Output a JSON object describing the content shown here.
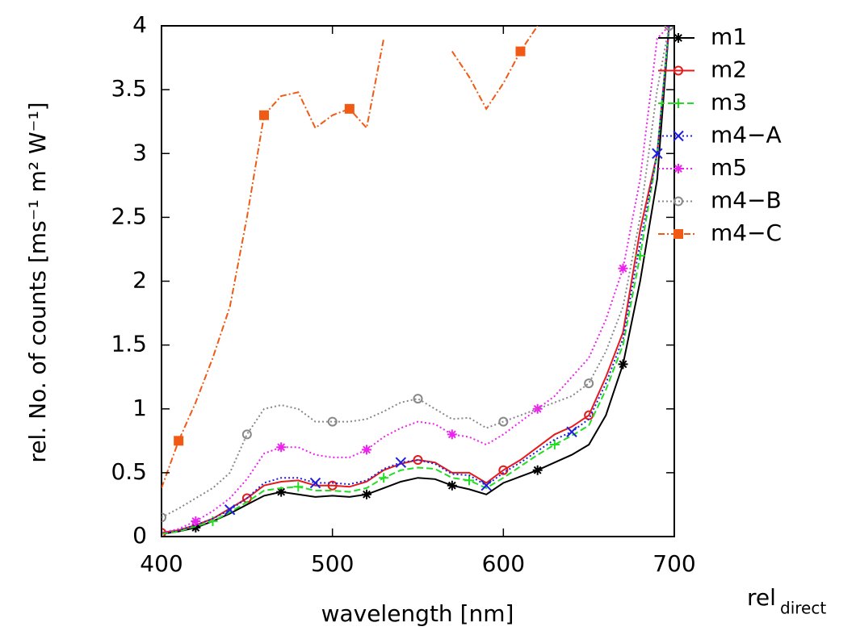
{
  "chart_data": {
    "type": "line",
    "xlabel": "wavelength [nm]",
    "ylabel": "rel. No. of counts [ms⁻¹ m² W⁻¹]",
    "annotation": {
      "text": "rel",
      "subscript": "direct"
    },
    "x": [
      400,
      410,
      420,
      430,
      440,
      450,
      460,
      470,
      480,
      490,
      500,
      510,
      520,
      530,
      540,
      550,
      560,
      570,
      580,
      590,
      600,
      610,
      620,
      630,
      640,
      650,
      660,
      670,
      680,
      690,
      697
    ],
    "xlim": [
      400,
      700
    ],
    "xticks": [
      400,
      500,
      600,
      700
    ],
    "ylim": [
      0,
      4
    ],
    "yticks": [
      0,
      0.5,
      1,
      1.5,
      2,
      2.5,
      3,
      3.5,
      4
    ],
    "legend": "right-outside",
    "series": [
      {
        "name": "m1",
        "color": "#000000",
        "style": "solid",
        "marker": "star",
        "values": [
          0.02,
          0.04,
          0.07,
          0.12,
          0.18,
          0.25,
          0.32,
          0.35,
          0.33,
          0.31,
          0.32,
          0.31,
          0.33,
          0.38,
          0.43,
          0.46,
          0.45,
          0.4,
          0.37,
          0.33,
          0.42,
          0.47,
          0.52,
          0.58,
          0.64,
          0.72,
          0.95,
          1.35,
          2.0,
          2.8,
          4.0
        ]
      },
      {
        "name": "m2",
        "color": "#e41a1c",
        "style": "solid",
        "marker": "circle",
        "values": [
          0.03,
          0.05,
          0.09,
          0.14,
          0.22,
          0.3,
          0.4,
          0.43,
          0.44,
          0.4,
          0.4,
          0.39,
          0.43,
          0.52,
          0.57,
          0.6,
          0.58,
          0.5,
          0.5,
          0.42,
          0.52,
          0.6,
          0.7,
          0.8,
          0.86,
          0.95,
          1.25,
          1.6,
          2.4,
          3.0,
          4.0
        ]
      },
      {
        "name": "m3",
        "color": "#22dd22",
        "style": "dashed",
        "marker": "plus",
        "values": [
          0.02,
          0.04,
          0.08,
          0.12,
          0.19,
          0.27,
          0.36,
          0.38,
          0.39,
          0.36,
          0.36,
          0.35,
          0.38,
          0.46,
          0.52,
          0.54,
          0.53,
          0.46,
          0.44,
          0.38,
          0.46,
          0.55,
          0.64,
          0.72,
          0.79,
          0.87,
          1.15,
          1.5,
          2.2,
          3.0,
          4.0
        ]
      },
      {
        "name": "m4−A",
        "color": "#1f1fdd",
        "style": "dotted",
        "marker": "cross",
        "values": [
          0.03,
          0.05,
          0.09,
          0.14,
          0.21,
          0.3,
          0.42,
          0.46,
          0.46,
          0.42,
          0.42,
          0.41,
          0.44,
          0.53,
          0.58,
          0.6,
          0.57,
          0.49,
          0.48,
          0.4,
          0.5,
          0.58,
          0.67,
          0.76,
          0.82,
          0.92,
          1.2,
          1.55,
          2.3,
          3.0,
          4.0
        ]
      },
      {
        "name": "m5",
        "color": "#ee22ee",
        "style": "dotted",
        "marker": "asterisk",
        "values": [
          0.03,
          0.06,
          0.12,
          0.2,
          0.3,
          0.45,
          0.65,
          0.7,
          0.7,
          0.64,
          0.62,
          0.62,
          0.68,
          0.78,
          0.85,
          0.9,
          0.88,
          0.8,
          0.78,
          0.72,
          0.8,
          0.9,
          1.0,
          1.1,
          1.25,
          1.4,
          1.7,
          2.1,
          2.8,
          3.9,
          4.0
        ]
      },
      {
        "name": "m4−B",
        "color": "#888888",
        "style": "dotted",
        "marker": "circle",
        "values": [
          0.15,
          0.22,
          0.3,
          0.38,
          0.5,
          0.8,
          1.0,
          1.03,
          1.0,
          0.9,
          0.9,
          0.9,
          0.92,
          0.98,
          1.05,
          1.08,
          1.0,
          0.92,
          0.93,
          0.85,
          0.9,
          0.95,
          1.0,
          1.05,
          1.1,
          1.2,
          1.45,
          1.8,
          2.5,
          3.5,
          4.0
        ]
      },
      {
        "name": "m4−C",
        "color": "#f05a14",
        "style": "dash-dot",
        "marker": "square",
        "values": [
          0.38,
          0.75,
          1.05,
          1.4,
          1.8,
          2.5,
          3.3,
          3.45,
          3.48,
          3.2,
          3.3,
          3.35,
          3.2,
          3.9,
          null,
          null,
          null,
          3.8,
          3.6,
          3.35,
          3.55,
          3.8,
          4.0,
          null,
          null,
          null,
          null,
          null,
          null,
          null,
          null
        ]
      }
    ]
  }
}
